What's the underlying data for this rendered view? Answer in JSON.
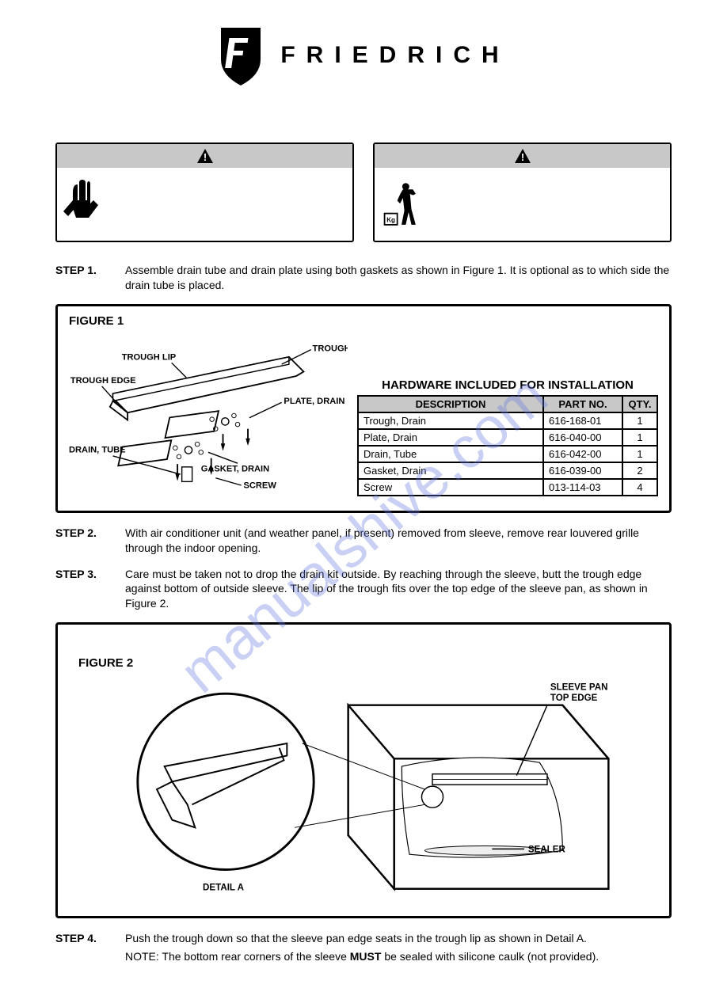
{
  "brand": "FRIEDRICH",
  "watermark": "manualshive.com",
  "steps": {
    "s1": {
      "label": "STEP 1.",
      "text": "Assemble drain tube and drain plate using both gaskets as shown in Figure 1. It is optional as to which side the drain tube is placed."
    },
    "s2": {
      "label": "STEP 2.",
      "text": "With air conditioner unit (and weather panel, if present) removed from sleeve, remove rear louvered grille through the indoor opening."
    },
    "s3": {
      "label": "STEP 3.",
      "text": "Care must be taken not to drop the drain kit outside. By reaching through the sleeve, butt the trough edge against bottom of outside sleeve. The lip of the trough fits over the top edge of the sleeve pan, as shown in Figure 2."
    },
    "s4": {
      "label": "STEP 4.",
      "text": "Push the trough down so that the sleeve pan edge seats in the trough lip as shown in Detail A."
    },
    "note": "NOTE:  The bottom rear corners of the sleeve ",
    "note_bold": "MUST",
    "note_tail": " be sealed with silicone caulk (not provided)."
  },
  "fig1": {
    "title": "FIGURE 1",
    "labels": {
      "trough_drain": "TROUGH, DRAIN",
      "trough_lip": "TROUGH LIP",
      "trough_edge": "TROUGH EDGE",
      "plate_drain": "PLATE, DRAIN",
      "drain_tube": "DRAIN, TUBE",
      "gasket_drain": "GASKET, DRAIN",
      "screw": "SCREW"
    }
  },
  "hardware": {
    "title": "HARDWARE INCLUDED FOR INSTALLATION",
    "columns": [
      "DESCRIPTION",
      "PART NO.",
      "QTY."
    ],
    "rows": [
      [
        "Trough, Drain",
        "616-168-01",
        "1"
      ],
      [
        "Plate, Drain",
        "616-040-00",
        "1"
      ],
      [
        "Drain, Tube",
        "616-042-00",
        "1"
      ],
      [
        "Gasket, Drain",
        "616-039-00",
        "2"
      ],
      [
        "Screw",
        "013-114-03",
        "4"
      ]
    ]
  },
  "fig2": {
    "title": "FIGURE 2",
    "detail": "DETAIL A",
    "labels": {
      "sleeve_pan": "SLEEVE PAN\nTOP EDGE",
      "sealer": "SEALER"
    }
  },
  "colors": {
    "border": "#000000",
    "header_bg": "#c8c8c8",
    "watermark": "rgba(100,120,220,0.35)"
  }
}
